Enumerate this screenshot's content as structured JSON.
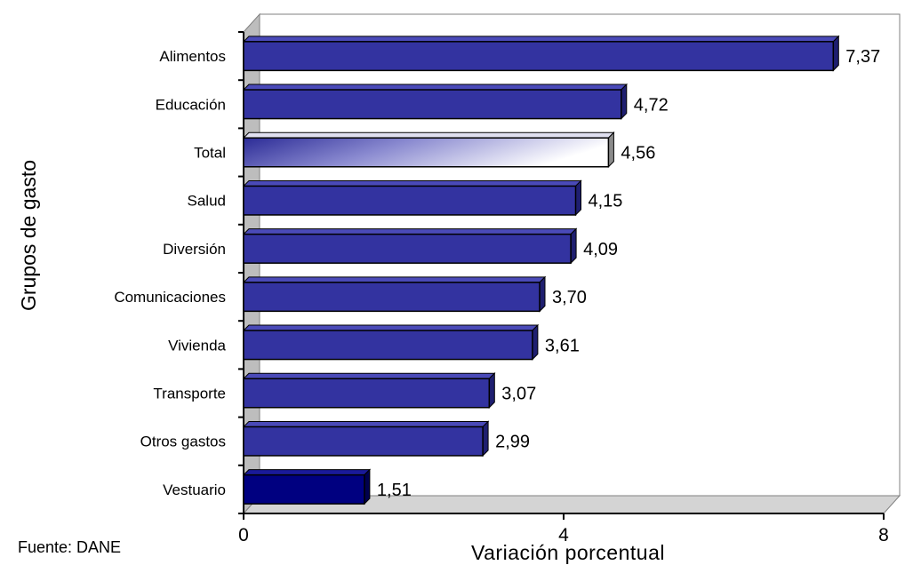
{
  "source": "Fuente: DANE",
  "chart_data": {
    "type": "bar",
    "orientation": "horizontal",
    "title": "",
    "xlabel": "Variación porcentual",
    "ylabel": "Grupos de gasto",
    "xlim": [
      0,
      8
    ],
    "xticks": [
      0,
      4,
      8
    ],
    "grid": false,
    "categories": [
      "Alimentos",
      "Educación",
      "Total",
      "Salud",
      "Diversión",
      "Comunicaciones",
      "Vivienda",
      "Transporte",
      "Otros gastos",
      "Vestuario"
    ],
    "values": [
      7.37,
      4.72,
      4.56,
      4.15,
      4.09,
      3.7,
      3.61,
      3.07,
      2.99,
      1.51
    ],
    "value_labels": [
      "7,37",
      "4,72",
      "4,56",
      "4,15",
      "4,09",
      "3,70",
      "3,61",
      "3,07",
      "2,99",
      "1,51"
    ],
    "colors": {
      "bar": "#3333a0",
      "bar_total_gradient_start": "#2b2b96",
      "bar_total_gradient_end": "#ffffff",
      "bar_vestuario": "#000080",
      "wall": "#bdbdbd",
      "floor": "#d4d4d4"
    }
  }
}
